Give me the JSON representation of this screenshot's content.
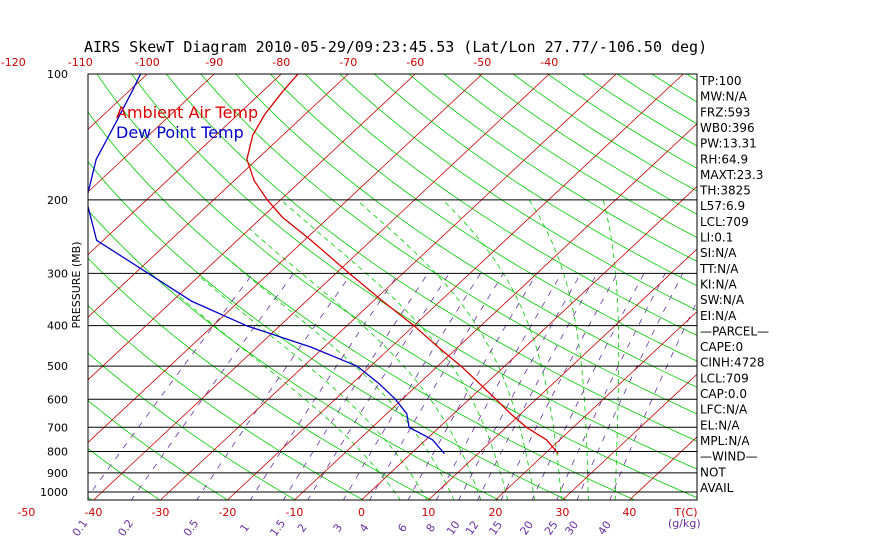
{
  "colors": {
    "temp_profile": "#dd0000",
    "dew_profile": "#0000cc",
    "isotherm": "#cc0000",
    "dry_adiabat": "#00cc00",
    "moist_adiabat": "#00cc00",
    "mixing_ratio": "#6a2fa0",
    "isobar": "#000000",
    "axis_text_red": "#cc0000",
    "axis_text_purple": "#6a2fa0"
  },
  "chart_data": {
    "type": "line",
    "title": "AIRS SkewT Diagram 2010-05-29/09:23:45.53 (Lat/Lon 27.77/-106.50 deg)",
    "ylabel": "PRESSURE (MB)",
    "x_unit_label": "T(C)",
    "mixing_unit_label": "g/kg",
    "y_scale": "log",
    "ylim": [
      1050,
      100
    ],
    "top_temp_ticks": [
      "-120",
      "-110",
      "-100",
      "-90",
      "-80",
      "-70",
      "-60",
      "-50",
      "-40"
    ],
    "bottom_temp_ticks": [
      "-50",
      "-40",
      "-30",
      "-20",
      "-10",
      "0",
      "10",
      "20",
      "30",
      "40"
    ],
    "pressure_ticks": [
      "100",
      "200",
      "300",
      "400",
      "500",
      "600",
      "700",
      "800",
      "900",
      "1000"
    ],
    "mixing_ratio_ticks": [
      "0.1",
      "0.2",
      "0.5",
      "1",
      "1.5",
      "2",
      "3",
      "4",
      "6",
      "8",
      "10",
      "12",
      "15",
      "20",
      "25",
      "30",
      "40"
    ],
    "legend": [
      {
        "label": "Ambient Air Temp",
        "color": "#dd0000"
      },
      {
        "label": "Dew Point Temp",
        "color": "#0000cc"
      }
    ],
    "series": [
      {
        "name": "Ambient Air Temp",
        "points": [
          {
            "p": 810,
            "t": 22.0
          },
          {
            "p": 750,
            "t": 18.0
          },
          {
            "p": 700,
            "t": 13.0
          },
          {
            "p": 650,
            "t": 8.5
          },
          {
            "p": 600,
            "t": 4.0
          },
          {
            "p": 550,
            "t": -1.0
          },
          {
            "p": 500,
            "t": -6.5
          },
          {
            "p": 450,
            "t": -13.0
          },
          {
            "p": 400,
            "t": -20.0
          },
          {
            "p": 350,
            "t": -28.5
          },
          {
            "p": 300,
            "t": -38.0
          },
          {
            "p": 250,
            "t": -49.0
          },
          {
            "p": 220,
            "t": -57.0
          },
          {
            "p": 200,
            "t": -62.0
          },
          {
            "p": 180,
            "t": -67.0
          },
          {
            "p": 160,
            "t": -71.5
          },
          {
            "p": 140,
            "t": -74.5
          },
          {
            "p": 125,
            "t": -76.0
          },
          {
            "p": 110,
            "t": -77.0
          },
          {
            "p": 100,
            "t": -77.5
          }
        ]
      },
      {
        "name": "Dew Point Temp",
        "points": [
          {
            "p": 810,
            "t": 5.0
          },
          {
            "p": 750,
            "t": 1.0
          },
          {
            "p": 700,
            "t": -4.5
          },
          {
            "p": 650,
            "t": -7.0
          },
          {
            "p": 600,
            "t": -11.0
          },
          {
            "p": 550,
            "t": -16.0
          },
          {
            "p": 500,
            "t": -22.0
          },
          {
            "p": 450,
            "t": -32.0
          },
          {
            "p": 400,
            "t": -45.0
          },
          {
            "p": 350,
            "t": -57.0
          },
          {
            "p": 300,
            "t": -68.0
          },
          {
            "p": 250,
            "t": -81.0
          },
          {
            "p": 200,
            "t": -89.0
          },
          {
            "p": 160,
            "t": -94.0
          },
          {
            "p": 130,
            "t": -97.0
          },
          {
            "p": 110,
            "t": -99.5
          },
          {
            "p": 100,
            "t": -101.0
          }
        ]
      }
    ]
  },
  "side_panel": [
    "TP:100",
    "MW:N/A",
    "FRZ:593",
    "WB0:396",
    "PW:13.31",
    "RH:64.9",
    "MAXT:23.3",
    "TH:3825",
    "L57:6.9",
    "LCL:709",
    "LI:0.1",
    "SI:N/A",
    "TT:N/A",
    "KI:N/A",
    "SW:N/A",
    "EI:N/A",
    "—PARCEL—",
    "CAPE:0",
    "CINH:4728",
    "LCL:709",
    "CAP:0.0",
    "LFC:N/A",
    "EL:N/A",
    "MPL:N/A",
    "—WIND—",
    "NOT",
    "AVAIL"
  ]
}
